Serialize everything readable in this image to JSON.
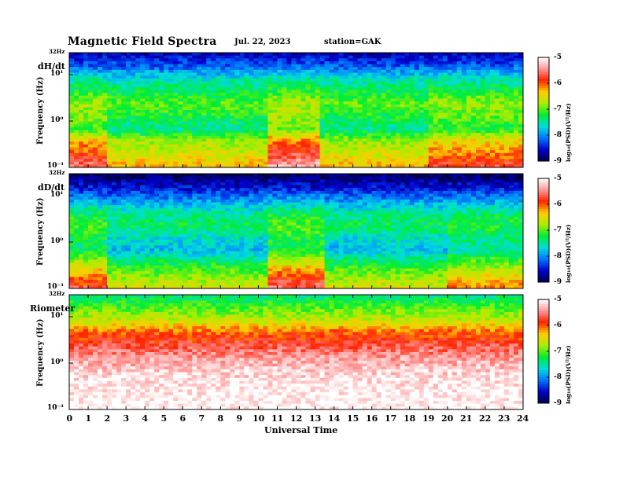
{
  "header": {
    "title": "Magnetic  Field  Spectra",
    "date": "Jul.  22, 2023",
    "station": "station=GAK"
  },
  "chart_data": {
    "type": "heatmap",
    "title": "Magnetic  Field  Spectra",
    "xlabel": "Universal  Time",
    "xlim": [
      0,
      24
    ],
    "x_ticks": [
      "0",
      "1",
      "2",
      "3",
      "4",
      "5",
      "6",
      "7",
      "8",
      "9",
      "10",
      "11",
      "12",
      "13",
      "14",
      "15",
      "16",
      "17",
      "18",
      "19",
      "20",
      "21",
      "22",
      "23",
      "24"
    ],
    "y_scale": "log",
    "y_ticks": [
      "32Hz",
      "10¹",
      "10⁰",
      "10⁻¹"
    ],
    "colorbar": {
      "label": "log₁₀(PSD)(V²/Hz)",
      "ticks": [
        "-5",
        "-6",
        "-7",
        "-8",
        "-9"
      ],
      "range": [
        -9,
        -5
      ],
      "colors": [
        "#000044",
        "#0000cc",
        "#0077ff",
        "#00dddd",
        "#00ee33",
        "#aaee00",
        "#ffcc00",
        "#ff2200",
        "#ff9999",
        "#ffffff"
      ]
    },
    "panels": [
      {
        "label": "dH/dt",
        "ylabel": "Frequency  (Hz)",
        "profile": [
          -8.6,
          -8.2,
          -7.6,
          -7.3,
          -7.0,
          -7.2,
          -7.5,
          -6.8,
          -6.6,
          -6.3
        ],
        "disturbance_hours": [
          [
            0,
            2,
            0.75
          ],
          [
            10.5,
            13.2,
            1.0
          ],
          [
            19,
            24,
            0.55
          ]
        ]
      },
      {
        "label": "dD/dt",
        "ylabel": "Frequency  (Hz)",
        "profile": [
          -8.9,
          -8.5,
          -8.0,
          -7.5,
          -7.3,
          -7.6,
          -7.8,
          -7.3,
          -6.9,
          -6.6
        ],
        "disturbance_hours": [
          [
            0,
            2,
            0.85
          ],
          [
            10.6,
            13.5,
            1.0
          ],
          [
            20,
            24,
            0.45
          ]
        ]
      },
      {
        "label": "Riometer",
        "ylabel": "Frequency  (Hz)",
        "profile": [
          -7.4,
          -7.0,
          -6.6,
          -6.0,
          -5.7,
          -5.4,
          -5.2,
          -5.1,
          -5.05,
          -5.0
        ],
        "disturbance_hours": []
      }
    ]
  }
}
